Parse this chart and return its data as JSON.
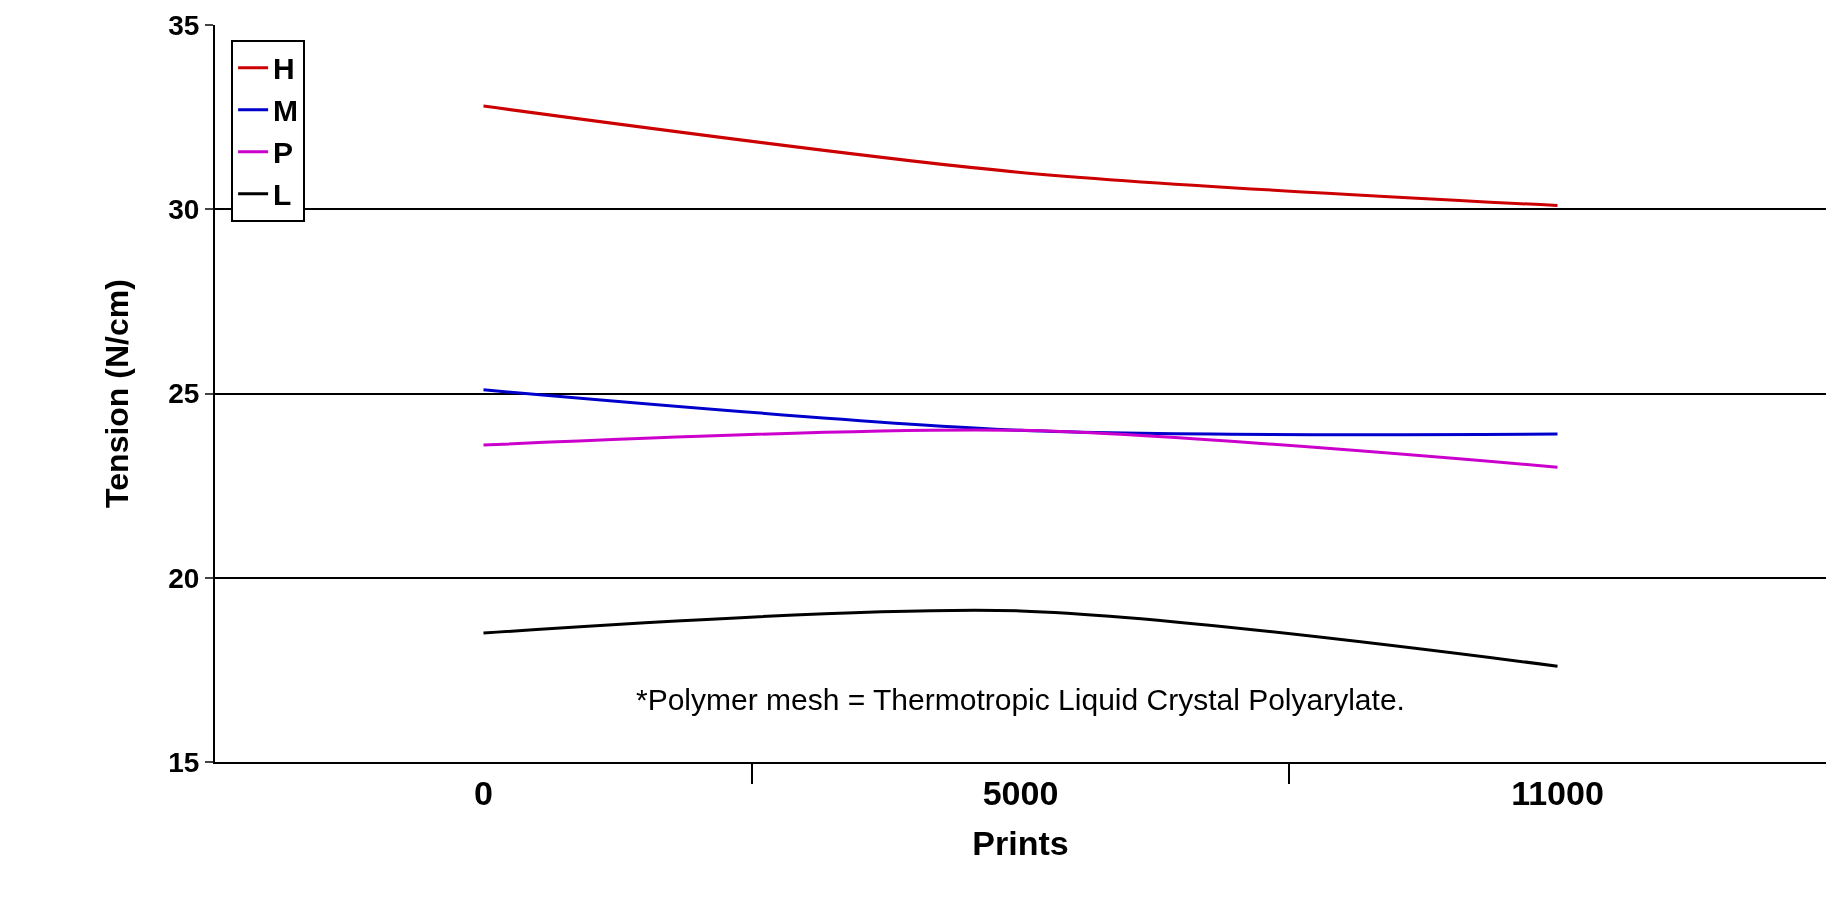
{
  "chart_data": {
    "type": "line",
    "xlabel": "Prints",
    "ylabel": "Tension (N/cm)",
    "categories": [
      "0",
      "5000",
      "11000"
    ],
    "series": [
      {
        "name": "H",
        "color": "#cc0000",
        "values": [
          32.8,
          31.0,
          30.1
        ]
      },
      {
        "name": "M",
        "color": "#0000cc",
        "values": [
          25.1,
          24.0,
          23.9
        ]
      },
      {
        "name": "P",
        "color": "#cc00cc",
        "values": [
          23.6,
          24.0,
          23.0
        ]
      },
      {
        "name": "L",
        "color": "#000000",
        "values": [
          18.5,
          19.1,
          17.6
        ]
      }
    ],
    "ylim": [
      15,
      35
    ],
    "yticks": [
      15,
      20,
      25,
      30,
      35
    ],
    "grid": "y",
    "legend": "top left",
    "marker": "none",
    "line_style": "solid",
    "annotations": [
      "*Polymer mesh = Thermotropic Liquid Crystal Polyarylate."
    ]
  }
}
